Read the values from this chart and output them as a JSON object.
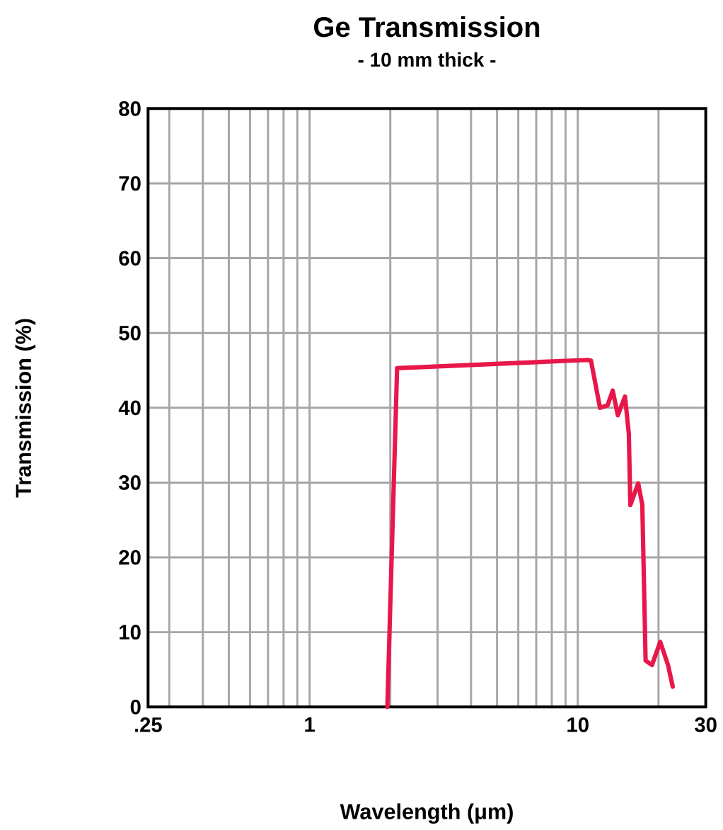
{
  "chart_data": {
    "type": "line",
    "title": "Ge Transmission",
    "subtitle": "- 10 mm thick -",
    "xlabel": "Wavelength (μm)",
    "ylabel": "Transmission (%)",
    "log": "x",
    "grid": true,
    "xlim": [
      0.25,
      30
    ],
    "ylim": [
      0,
      80
    ],
    "xticks": [
      {
        "value": 0.25,
        "label": ".25"
      },
      {
        "value": 0.3,
        "label": null
      },
      {
        "value": 0.4,
        "label": null
      },
      {
        "value": 0.5,
        "label": null
      },
      {
        "value": 0.6,
        "label": null
      },
      {
        "value": 0.7,
        "label": null
      },
      {
        "value": 0.8,
        "label": null
      },
      {
        "value": 0.9,
        "label": null
      },
      1,
      {
        "value": 2,
        "label": null
      },
      {
        "value": 3,
        "label": null
      },
      {
        "value": 4,
        "label": null
      },
      {
        "value": 5,
        "label": null
      },
      {
        "value": 6,
        "label": null
      },
      {
        "value": 7,
        "label": null
      },
      {
        "value": 8,
        "label": null
      },
      {
        "value": 9,
        "label": null
      },
      10,
      {
        "value": 20,
        "label": null
      },
      30
    ],
    "yticks": [
      0,
      10,
      20,
      30,
      40,
      50,
      60,
      70,
      80
    ],
    "series": [
      {
        "color": "#e8174a",
        "x": [
          1.95,
          2.12,
          10.9,
          11.2,
          12.1,
          12.9,
          13.5,
          14.1,
          15.0,
          15.5,
          15.7,
          16.8,
          17.4,
          17.9,
          18.9,
          20.3,
          21.7,
          22.6
        ],
        "values": [
          0,
          45.3,
          46.4,
          46.3,
          40.0,
          40.3,
          42.3,
          39.0,
          41.5,
          36.5,
          27.0,
          29.9,
          27.0,
          6.2,
          5.6,
          8.7,
          5.6,
          2.7
        ]
      }
    ]
  }
}
